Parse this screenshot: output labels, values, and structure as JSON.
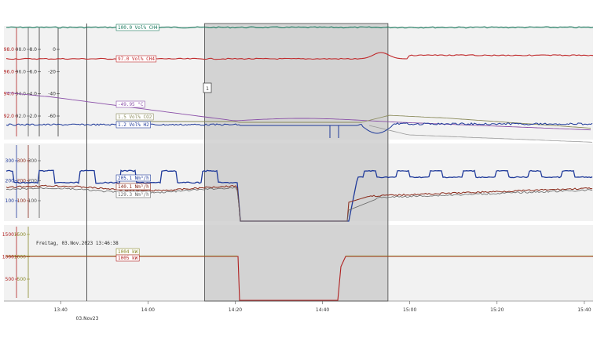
{
  "chart_data": {
    "type": "line",
    "x_ticks": [
      "13:40",
      "14:00",
      "14:20",
      "14:40",
      "15:00",
      "15:20",
      "15:40"
    ],
    "x_date_label": "03.Nov23",
    "x_range": [
      "13:27",
      "15:42"
    ],
    "timestamp_label": "Freitag, 03.Nov.2023 13:46:38",
    "cursor_time": "13:46",
    "highlight": {
      "from": "14:13",
      "to": "14:55"
    },
    "marker_label": "1",
    "panels": [
      {
        "name": "panel-top",
        "axes": [
          {
            "color": "#b02020",
            "ticks": [
              "98.0",
              "96.0",
              "94.0",
              "92.0"
            ]
          },
          {
            "color": "#555555",
            "ticks": [
              "98.0",
              "96.0",
              "94.0",
              "92.0"
            ]
          },
          {
            "color": "#333333",
            "ticks": [
              "8.0",
              "6.0",
              "4.0",
              "2.0"
            ]
          },
          {
            "color": "#333333",
            "ticks": [
              "0",
              "-20",
              "-40",
              "-60"
            ]
          }
        ],
        "series": [
          {
            "label": "100.0 Vol% CH4",
            "color": "#1a7a5e"
          },
          {
            "label": "97.0 Vol% CH4",
            "color": "#c0282a"
          },
          {
            "label": "-49.95 °C",
            "color": "#8a4fa8"
          },
          {
            "label": "1.5 Vol% CO2",
            "color": "#8a8a5a"
          },
          {
            "label": "1.2 Vol% H2",
            "color": "#1f3a9a"
          }
        ]
      },
      {
        "name": "panel-middle",
        "axes": [
          {
            "color": "#1f3a9a",
            "ticks": [
              "300",
              "200",
              "100"
            ]
          },
          {
            "color": "#8a2a1a",
            "ticks": [
              "300",
              "200",
              "100"
            ]
          },
          {
            "color": "#555555",
            "ticks": [
              "300",
              "200",
              "100"
            ]
          }
        ],
        "series": [
          {
            "label": "205.1 Nm³/h",
            "color": "#1f3a9a"
          },
          {
            "label": "140.1 Nm³/h",
            "color": "#8a2a1a"
          },
          {
            "label": "129.3 Nm³/h",
            "color": "#666666"
          }
        ]
      },
      {
        "name": "panel-bottom",
        "axes": [
          {
            "color": "#b02020",
            "ticks": [
              "1500",
              "1000",
              "500"
            ]
          },
          {
            "color": "#8a8a2a",
            "ticks": [
              "1500",
              "1000",
              "500"
            ]
          }
        ],
        "series": [
          {
            "label": "1004 kW",
            "color": "#8a8a2a"
          },
          {
            "label": "1005 kW",
            "color": "#b02020"
          }
        ]
      }
    ],
    "colors": {
      "highlight": "#c8c8c8",
      "panel_bg": "#f2f2f2"
    }
  }
}
